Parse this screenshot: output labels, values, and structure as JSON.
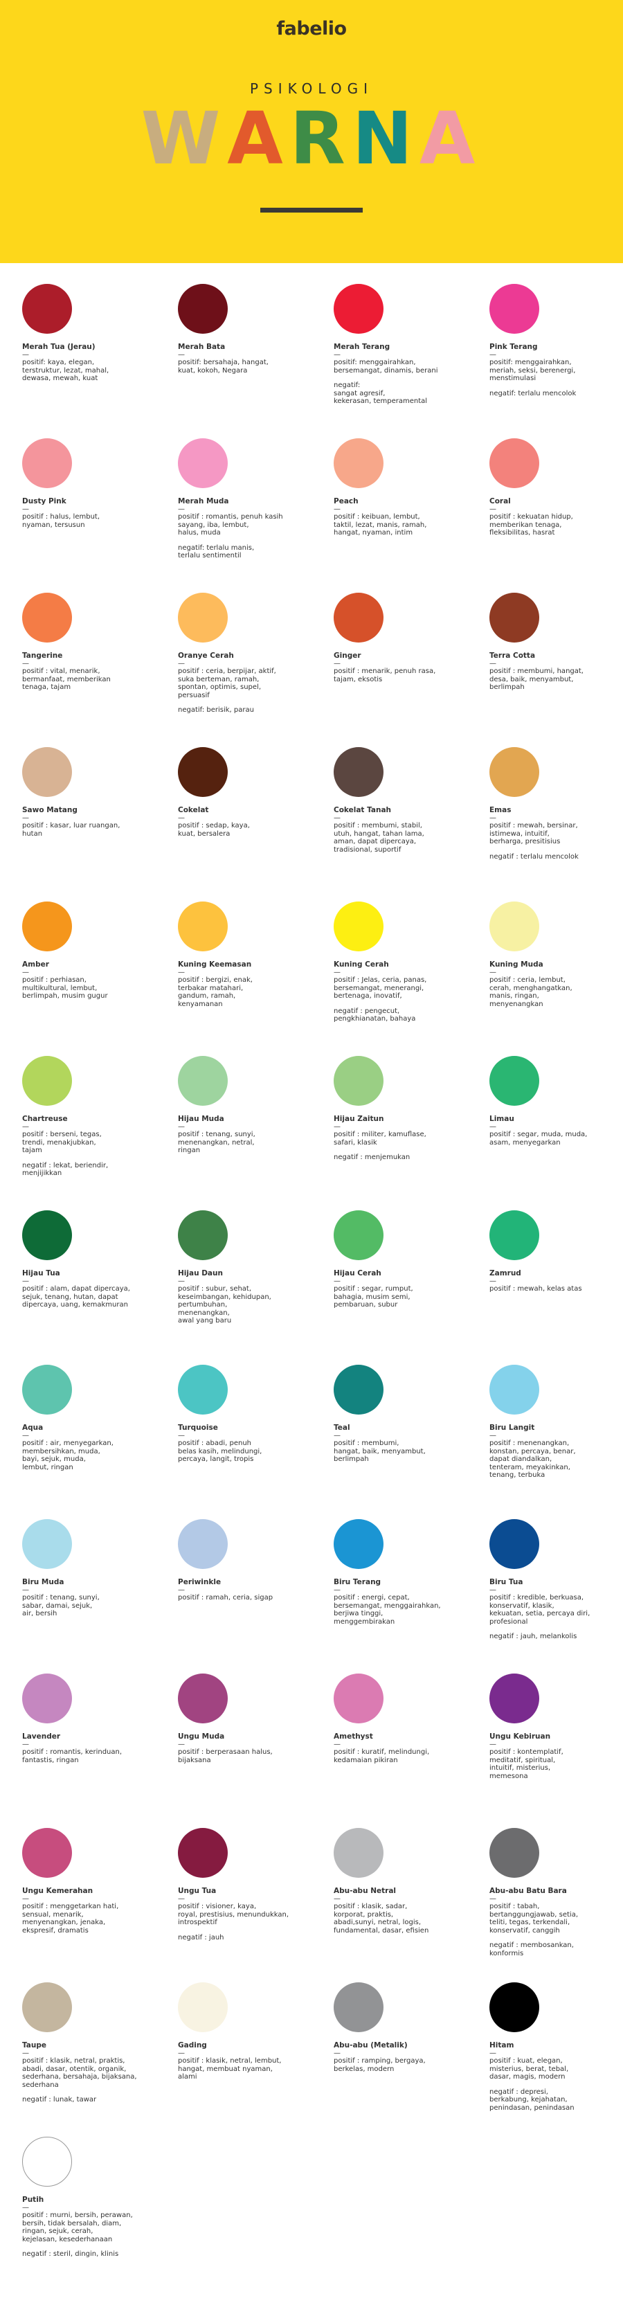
{
  "header": {
    "logo": "fabelio",
    "subtitle": "PSIKOLOGI",
    "title_letters": [
      {
        "char": "W",
        "color": "#C8AD7F"
      },
      {
        "char": "A",
        "color": "#E25A2C"
      },
      {
        "char": "R",
        "color": "#3E8C47"
      },
      {
        "char": "N",
        "color": "#168A85"
      },
      {
        "char": "A",
        "color": "#F29BA4"
      }
    ],
    "background": "#FDD71B"
  },
  "colors": [
    {
      "name": "Merah Tua (Jerau)",
      "hex": "#AC1D2A",
      "positive": "positif: kaya, elegan,\nterstruktur, lezat, mahal,\ndewasa, mewah, kuat",
      "negative": ""
    },
    {
      "name": "Merah Bata",
      "hex": "#6E1019",
      "positive": "positif: bersahaja, hangat,\nkuat, kokoh, Negara",
      "negative": ""
    },
    {
      "name": "Merah Terang",
      "hex": "#EC1C34",
      "positive": "positif: menggairahkan,\nbersemangat, dinamis, berani",
      "negative": "negatif:\nsangat agresif,\nkekerasan, temperamental"
    },
    {
      "name": "Pink Terang",
      "hex": "#EC3A94",
      "positive": "positif: menggairahkan,\nmeriah, seksi, berenergi,\nmenstimulasi",
      "negative": "negatif: terlalu mencolok"
    },
    {
      "name": "Dusty Pink",
      "hex": "#F4959C",
      "positive": "positif : halus, lembut,\nnyaman, tersusun",
      "negative": ""
    },
    {
      "name": "Merah Muda",
      "hex": "#F598C4",
      "positive": "positif : romantis, penuh kasih\nsayang, iba, lembut,\nhalus, muda",
      "negative": "negatif: terlalu manis,\nterlalu sentimentil"
    },
    {
      "name": "Peach",
      "hex": "#F7A78A",
      "positive": "positif : keibuan, lembut,\ntaktil, lezat, manis, ramah,\nhangat, nyaman, intim",
      "negative": ""
    },
    {
      "name": "Coral",
      "hex": "#F3827C",
      "positive": "positif : kekuatan hidup,\nmemberikan tenaga,\nfleksibilitas, hasrat",
      "negative": ""
    },
    {
      "name": "Tangerine",
      "hex": "#F47C46",
      "positive": "positif : vital, menarik,\nbermanfaat, memberikan\ntenaga, tajam",
      "negative": ""
    },
    {
      "name": "Oranye Cerah",
      "hex": "#FDBB5C",
      "positive": "positif : ceria, berpijar, aktif,\nsuka berteman, ramah,\nspontan, optimis, supel,\npersuasif",
      "negative": "negatif: berisik, parau"
    },
    {
      "name": "Ginger",
      "hex": "#D6512A",
      "positive": "positif : menarik, penuh rasa,\ntajam, eksotis",
      "negative": ""
    },
    {
      "name": "Terra Cotta",
      "hex": "#8E3A23",
      "positive": "positif : membumi, hangat,\ndesa, baik, menyambut,\nberlimpah",
      "negative": ""
    },
    {
      "name": "Sawo Matang",
      "hex": "#D8B394",
      "positive": "positif : kasar, luar ruangan,\nhutan",
      "negative": ""
    },
    {
      "name": "Cokelat",
      "hex": "#55220F",
      "positive": "positif : sedap, kaya,\nkuat, bersalera",
      "negative": ""
    },
    {
      "name": "Cokelat Tanah",
      "hex": "#5B4640",
      "positive": "positif : membumi, stabil,\nutuh, hangat, tahan lama,\naman, dapat dipercaya,\ntradisional, suportif",
      "negative": ""
    },
    {
      "name": "Emas",
      "hex": "#E2A651",
      "positive": "positif : mewah, bersinar,\nistimewa, intuitif,\nberharga, presitisius",
      "negative": "negatif : terlalu mencolok"
    },
    {
      "name": "Amber",
      "hex": "#F5961C",
      "positive": "positif : perhiasan,\nmultikultural, lembut,\nberlimpah, musim gugur",
      "negative": ""
    },
    {
      "name": "Kuning Keemasan",
      "hex": "#FDC23E",
      "positive": "positif : bergizi, enak,\nterbakar matahari,\ngandum, ramah,\nkenyamanan",
      "negative": ""
    },
    {
      "name": "Kuning Cerah",
      "hex": "#FDEF12",
      "positive": "positif : Jelas, ceria, panas,\nbersemangat, menerangi,\nbertenaga, inovatif,",
      "negative": "negatif : pengecut,\npengkhianatan, bahaya"
    },
    {
      "name": "Kuning Muda",
      "hex": "#F7F1A3",
      "positive": "positif : ceria, lembut,\ncerah, menghangatkan,\nmanis, ringan,\nmenyenangkan",
      "negative": ""
    },
    {
      "name": "Chartreuse",
      "hex": "#B2D65C",
      "positive": "positif : berseni, tegas,\ntrendi, menakjubkan,\ntajam",
      "negative": "negatif : lekat, beriendir,\nmenjijikkan"
    },
    {
      "name": "Hijau Muda",
      "hex": "#9ED49F",
      "positive": "positif : tenang, sunyi,\nmenenangkan, netral,\nringan",
      "negative": ""
    },
    {
      "name": "Hijau Zaitun",
      "hex": "#9ACF84",
      "positive": "positif : militer, kamuflase,\nsafari, klasik",
      "negative": "negatif : menjemukan"
    },
    {
      "name": "Limau",
      "hex": "#2AB672",
      "positive": "positif : segar, muda, muda,\nasam, menyegarkan",
      "negative": ""
    },
    {
      "name": "Hijau Tua",
      "hex": "#0E6B37",
      "positive": "positif : alam, dapat dipercaya,\nsejuk, tenang, hutan, dapat\ndipercaya, uang, kemakmuran",
      "negative": ""
    },
    {
      "name": "Hijau Daun",
      "hex": "#3E8248",
      "positive": "positif : subur, sehat,\nkeseimbangan, kehidupan,\npertumbuhan,\nmenenangkan,\nawal yang baru",
      "negative": ""
    },
    {
      "name": "Hijau Cerah",
      "hex": "#53BB65",
      "positive": "positif : segar, rumput,\nbahagia, musim semi,\npembaruan, subur",
      "negative": ""
    },
    {
      "name": "Zamrud",
      "hex": "#22B478",
      "positive": "positif : mewah, kelas atas",
      "negative": ""
    },
    {
      "name": "Aqua",
      "hex": "#5EC4AE",
      "positive": "positif : air, menyegarkan,\nmembersihkan, muda,\nbayi, sejuk, muda,\nlembut, ringan",
      "negative": ""
    },
    {
      "name": "Turquoise",
      "hex": "#4CC5C4",
      "positive": "positif : abadi, penuh\nbelas kasih, melindungi,\npercaya, langit, tropis",
      "negative": ""
    },
    {
      "name": "Teal",
      "hex": "#13837F",
      "positive": "positif : membumi,\nhangat, baik, menyambut,\nberlimpah",
      "negative": ""
    },
    {
      "name": "Biru Langit",
      "hex": "#84D2EB",
      "positive": "positif : menenangkan,\nkonstan, percaya, benar,\ndapat diandalkan,\ntenteram, meyakinkan,\ntenang, terbuka",
      "negative": ""
    },
    {
      "name": "Biru Muda",
      "hex": "#A9DCEB",
      "positive": "positif : tenang, sunyi,\nsabar, damai, sejuk,\nair, bersih",
      "negative": ""
    },
    {
      "name": "Periwinkle",
      "hex": "#B3C9E6",
      "positive": "positif : ramah, ceria, sigap",
      "negative": ""
    },
    {
      "name": "Biru Terang",
      "hex": "#1B95D3",
      "positive": "positif : energi, cepat,\nbersemangat, menggairahkan,\nberjiwa tinggi,\nmenggembirakan",
      "negative": ""
    },
    {
      "name": "Biru Tua",
      "hex": "#0B4C92",
      "positive": "positif : kredible, berkuasa,\nkonservatif, klasik,\nkekuatan, setia, percaya diri,\nprofesional",
      "negative": "negatif : jauh, melankolis"
    },
    {
      "name": "Lavender",
      "hex": "#C587C0",
      "positive": "positif : romantis, kerinduan,\nfantastis, ringan",
      "negative": ""
    },
    {
      "name": "Ungu Muda",
      "hex": "#A14481",
      "positive": "positif : berperasaan halus,\nbijaksana",
      "negative": ""
    },
    {
      "name": "Amethyst",
      "hex": "#DB7BB2",
      "positive": "positif : kuratif, melindungi,\nkedamaian pikiran",
      "negative": ""
    },
    {
      "name": "Ungu Kebiruan",
      "hex": "#7A2B8E",
      "positive": "positif : kontemplatif,\nmeditatif, spiritual,\nintuitif, misterius,\nmemesona",
      "negative": ""
    },
    {
      "name": "Ungu Kemerahan",
      "hex": "#C74D7E",
      "positive": "positif : menggetarkan hati,\nsensual, menarik,\nmenyenangkan, jenaka,\nekspresif, dramatis",
      "negative": ""
    },
    {
      "name": "Ungu Tua",
      "hex": "#851B40",
      "positive": "positif : visioner, kaya,\nroyal, prestisius, menundukkan,\nintrospektif",
      "negative": "negatif : jauh"
    },
    {
      "name": "Abu-abu Netral",
      "hex": "#B8B9BB",
      "positive": "positif : klasik, sadar,\nkorporat, praktis,\nabadi,sunyi, netral, logis,\nfundamental, dasar, efisien",
      "negative": ""
    },
    {
      "name": "Abu-abu Batu Bara",
      "hex": "#6C6C6E",
      "positive": "positif : tabah,\nbertanggungjawab, setia,\nteliti, tegas, terkendali,\nkonservatif, canggih",
      "negative": "negatif : membosankan,\nkonformis"
    },
    {
      "name": "Taupe",
      "hex": "#C4B69F",
      "positive": "positif : klasik, netral, praktis,\nabadi, dasar, otentik, organik,\nsederhana, bersahaja, bijaksana,\nsederhana",
      "negative": "negatif : lunak, tawar"
    },
    {
      "name": "Gading",
      "hex": "#F8F3E2",
      "positive": "positif : klasik, netral, lembut,\nhangat, membuat nyaman,\nalami",
      "negative": ""
    },
    {
      "name": "Abu-abu (Metalik)",
      "hex": "#929395",
      "positive": "positif : ramping, bergaya,\nberkelas, modern",
      "negative": ""
    },
    {
      "name": "Hitam",
      "hex": "#000000",
      "positive": "positif : kuat, elegan,\nmisterius, berat, tebal,\ndasar, magis, modern",
      "negative": "negatif : depresi,\nberkabung, kejahatan,\npenindasan, penindasan"
    },
    {
      "name": "Putih",
      "hex": "#FFFFFF",
      "positive": "positif : murni, bersih, perawan,\nbersih, tidak bersalah, diam,\nringan, sejuk, cerah,\nkejelasan, kesederhanaan",
      "negative": "negatif : steril, dingin, klinis"
    }
  ]
}
